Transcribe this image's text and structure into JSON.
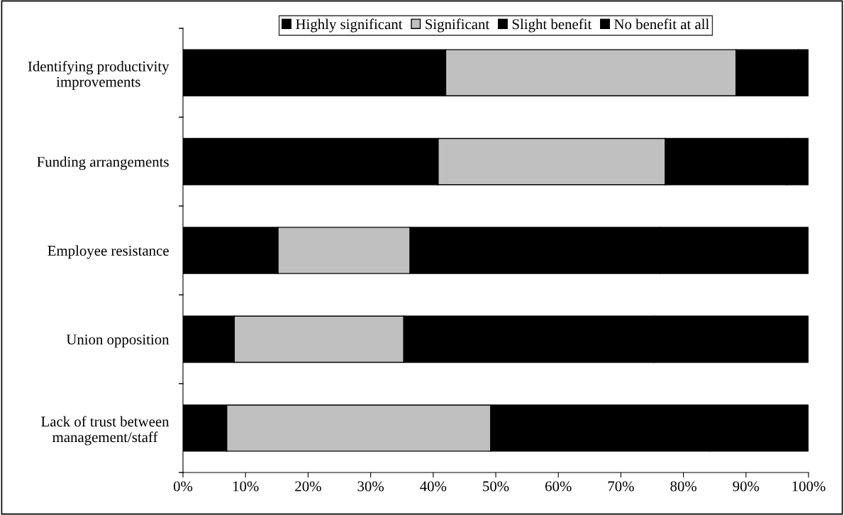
{
  "chart_data": {
    "type": "bar",
    "orientation": "horizontal",
    "stacked": true,
    "categories": [
      "Identifying productivity improvements",
      "Funding arrangements",
      "Employee resistance",
      "Union opposition",
      "Lack of trust between management/staff"
    ],
    "series": [
      {
        "name": "Highly significant",
        "color": "#000000",
        "values": [
          42.0,
          40.8,
          15.2,
          8.2,
          7.0
        ]
      },
      {
        "name": "Significant",
        "color": "#c0c0c0",
        "values": [
          46.4,
          36.3,
          21.1,
          27.1,
          42.2
        ]
      },
      {
        "name": "Slight benefit",
        "color": "#000000",
        "values": [
          10.0,
          19.4,
          40.0,
          40.0,
          35.0
        ]
      },
      {
        "name": "No benefit at all",
        "color": "#000000",
        "values": [
          1.6,
          3.5,
          23.7,
          24.7,
          15.8
        ]
      }
    ],
    "xlim": [
      0,
      100
    ],
    "xticks": [
      {
        "value": 0,
        "label": "0%"
      },
      {
        "value": 10,
        "label": "10%"
      },
      {
        "value": 20,
        "label": "20%"
      },
      {
        "value": 30,
        "label": "30%"
      },
      {
        "value": 40,
        "label": "40%"
      },
      {
        "value": 50,
        "label": "50%"
      },
      {
        "value": 60,
        "label": "60%"
      },
      {
        "value": 70,
        "label": "70%"
      },
      {
        "value": 80,
        "label": "80%"
      },
      {
        "value": 90,
        "label": "90%"
      },
      {
        "value": 100,
        "label": "100%"
      }
    ],
    "legend": "top",
    "grid": false
  }
}
